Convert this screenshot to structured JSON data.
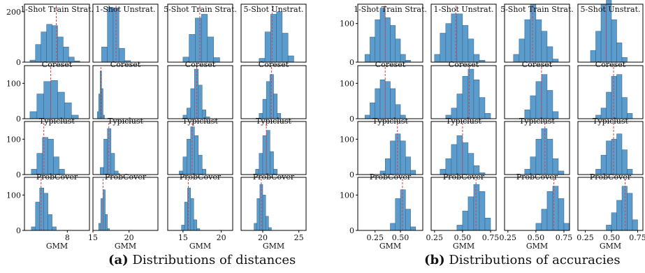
{
  "captions": {
    "a_tag": "(a)",
    "a_text": "Distributions of distances",
    "b_tag": "(b)",
    "b_text": "Distributions of accuracies"
  },
  "colors": {
    "bar_fill": "#5b9ccc",
    "bar_edge": "#2f5f86",
    "mean_line": "#d0454c"
  },
  "chart_data": [
    {
      "type": "bar",
      "panel": "a",
      "column_titles": [
        "1-Shot Train Strat.",
        "1-Shot Unstrat.",
        "5-Shot Train Strat.",
        "5-Shot Unstrat."
      ],
      "row_labels": [
        "Coreset",
        "Typiclust",
        "ProbCover",
        "GMM"
      ],
      "y_tick_labels": [
        [
          "0",
          "200"
        ],
        [
          "0",
          "100"
        ],
        [
          "0",
          "100"
        ],
        [
          "0",
          "100"
        ]
      ],
      "ylim": [
        [
          0,
          230
        ],
        [
          0,
          150
        ],
        [
          0,
          150
        ],
        [
          0,
          150
        ]
      ],
      "x_tick_labels": [
        [
          "8"
        ],
        [
          "15",
          "20"
        ],
        [
          "15",
          "20"
        ],
        [
          "20",
          "25"
        ]
      ],
      "x_tick_values": [
        [
          8
        ],
        [
          15,
          20
        ],
        [
          15,
          20
        ],
        [
          20,
          25
        ]
      ],
      "xlim": [
        [
          4.9,
          9.6
        ],
        [
          15.0,
          24.0
        ],
        [
          13.0,
          21.5
        ],
        [
          17.0,
          26.0
        ]
      ],
      "xlabel": "GMM",
      "histograms": [
        [
          {
            "edges": [
              5.3,
              5.7,
              6.1,
              6.5,
              6.9,
              7.3,
              7.7,
              8.1,
              8.5,
              8.9
            ],
            "counts": [
              8,
              70,
              120,
              150,
              145,
              100,
              60,
              20,
              5
            ],
            "mean": 7.2
          },
          {
            "edges": [
              16.2,
              17.0,
              17.8,
              18.6,
              19.4,
              20.2
            ],
            "counts": [
              60,
              218,
              215,
              55,
              6
            ],
            "mean": 18.2
          },
          {
            "edges": [
              15.0,
              15.8,
              16.6,
              17.4,
              18.2,
              19.0,
              19.8
            ],
            "counts": [
              20,
              110,
              175,
              190,
              100,
              18
            ],
            "mean": 17.2
          },
          {
            "edges": [
              19.5,
              20.3,
              21.1,
              21.9,
              22.7,
              23.5,
              24.3
            ],
            "counts": [
              15,
              120,
              190,
              200,
              115,
              25
            ],
            "mean": 21.3
          }
        ],
        [
          {
            "edges": [
              5.3,
              5.8,
              6.3,
              6.8,
              7.3,
              7.8,
              8.3,
              8.8
            ],
            "counts": [
              20,
              70,
              105,
              108,
              75,
              45,
              10
            ],
            "mean": 6.8
          },
          {
            "edges": [
              15.6,
              15.8,
              16.0,
              16.2,
              16.4,
              16.6
            ],
            "counts": [
              20,
              70,
              135,
              85,
              10
            ],
            "mean": 16.1
          },
          {
            "edges": [
              15.0,
              15.5,
              16.0,
              16.5,
              17.0,
              17.5,
              18.0,
              18.5
            ],
            "counts": [
              10,
              30,
              85,
              140,
              95,
              25,
              5
            ],
            "mean": 16.8
          },
          {
            "edges": [
              19.5,
              20.0,
              20.5,
              21.0,
              21.5,
              22.0,
              22.5
            ],
            "counts": [
              15,
              55,
              105,
              125,
              70,
              15
            ],
            "mean": 21.2
          }
        ],
        [
          {
            "edges": [
              5.4,
              5.8,
              6.2,
              6.6,
              7.0,
              7.4,
              7.8
            ],
            "counts": [
              15,
              60,
              105,
              100,
              50,
              15
            ],
            "mean": 6.3
          },
          {
            "edges": [
              16.0,
              16.5,
              17.0,
              17.5,
              18.0,
              18.5
            ],
            "counts": [
              20,
              100,
              130,
              60,
              10
            ],
            "mean": 17.2
          },
          {
            "edges": [
              14.5,
              15.0,
              15.5,
              16.0,
              16.5,
              17.0,
              17.5,
              18.0
            ],
            "counts": [
              10,
              50,
              100,
              135,
              110,
              55,
              15
            ],
            "mean": 16.2
          },
          {
            "edges": [
              19.0,
              19.5,
              20.0,
              20.5,
              21.0,
              21.5,
              22.0
            ],
            "counts": [
              15,
              60,
              110,
              125,
              65,
              15
            ],
            "mean": 20.5
          }
        ],
        [
          {
            "edges": [
              5.4,
              5.7,
              6.0,
              6.3,
              6.6,
              6.9,
              7.2
            ],
            "counts": [
              10,
              80,
              120,
              105,
              45,
              10
            ],
            "mean": 6.1
          },
          {
            "edges": [
              15.8,
              16.1,
              16.4,
              16.7,
              17.0,
              17.3
            ],
            "counts": [
              20,
              90,
              115,
              45,
              5
            ],
            "mean": 16.4
          },
          {
            "edges": [
              14.8,
              15.2,
              15.6,
              16.0,
              16.4,
              16.8,
              17.2
            ],
            "counts": [
              15,
              80,
              120,
              90,
              30,
              5
            ],
            "mean": 15.7
          },
          {
            "edges": [
              18.8,
              19.2,
              19.6,
              20.0,
              20.4,
              20.8,
              21.2
            ],
            "counts": [
              20,
              90,
              130,
              100,
              40,
              8
            ],
            "mean": 19.8
          }
        ]
      ]
    },
    {
      "type": "bar",
      "panel": "b",
      "column_titles": [
        "1-Shot Train Strat.",
        "1-Shot Unstrat.",
        "5-Shot Train Strat.",
        "5-Shot Unstrat."
      ],
      "row_labels": [
        "Coreset",
        "Typiclust",
        "ProbCover",
        "GMM"
      ],
      "y_tick_labels": [
        [
          "0",
          "100"
        ],
        [
          "0",
          "100"
        ],
        [
          "0",
          "100"
        ],
        [
          "0",
          "100"
        ]
      ],
      "ylim": [
        [
          0,
          150
        ],
        [
          0,
          150
        ],
        [
          0,
          150
        ],
        [
          0,
          150
        ]
      ],
      "x_tick_labels": [
        [
          "0.25",
          "0.50"
        ],
        [
          "0.25",
          "0.50",
          "0.75"
        ],
        [
          "0.25",
          "0.50",
          "0.75"
        ],
        [
          "0.25",
          "0.50",
          "0.75"
        ]
      ],
      "x_tick_values": [
        [
          0.25,
          0.5
        ],
        [
          0.25,
          0.5,
          0.75
        ],
        [
          0.25,
          0.5,
          0.75
        ],
        [
          0.25,
          0.5,
          0.75
        ]
      ],
      "xlim": [
        [
          0.08,
          0.72
        ],
        [
          0.22,
          0.8
        ],
        [
          0.22,
          0.8
        ],
        [
          0.18,
          0.8
        ]
      ],
      "xlabel": "GMM",
      "histograms": [
        [
          {
            "edges": [
              0.15,
              0.2,
              0.25,
              0.3,
              0.35,
              0.4,
              0.45,
              0.5,
              0.55,
              0.6
            ],
            "counts": [
              20,
              65,
              110,
              140,
              115,
              95,
              60,
              20,
              5
            ],
            "mean": 0.35
          },
          {
            "edges": [
              0.25,
              0.3,
              0.35,
              0.4,
              0.45,
              0.5,
              0.55,
              0.6,
              0.65,
              0.7
            ],
            "counts": [
              20,
              75,
              100,
              125,
              125,
              95,
              60,
              20,
              5
            ],
            "mean": 0.44
          },
          {
            "edges": [
              0.3,
              0.35,
              0.4,
              0.45,
              0.5,
              0.55,
              0.6,
              0.65,
              0.7
            ],
            "counts": [
              20,
              60,
              110,
              150,
              110,
              80,
              40,
              8
            ],
            "mean": 0.47
          },
          {
            "edges": [
              0.3,
              0.35,
              0.4,
              0.45,
              0.5,
              0.55,
              0.6,
              0.65
            ],
            "counts": [
              30,
              80,
              150,
              160,
              110,
              50,
              12
            ],
            "mean": 0.45
          }
        ],
        [
          {
            "edges": [
              0.15,
              0.2,
              0.25,
              0.3,
              0.35,
              0.4,
              0.45,
              0.5,
              0.55
            ],
            "counts": [
              10,
              45,
              85,
              110,
              105,
              85,
              40,
              10
            ],
            "mean": 0.35
          },
          {
            "edges": [
              0.35,
              0.4,
              0.45,
              0.5,
              0.55,
              0.6,
              0.65,
              0.7,
              0.75
            ],
            "counts": [
              10,
              30,
              70,
              120,
              140,
              110,
              60,
              15
            ],
            "mean": 0.56
          },
          {
            "edges": [
              0.4,
              0.45,
              0.5,
              0.55,
              0.6,
              0.65,
              0.7
            ],
            "counts": [
              25,
              65,
              105,
              125,
              80,
              20
            ],
            "mean": 0.55
          },
          {
            "edges": [
              0.35,
              0.4,
              0.45,
              0.5,
              0.55,
              0.6,
              0.65,
              0.7
            ],
            "counts": [
              10,
              30,
              75,
              120,
              125,
              60,
              15
            ],
            "mean": 0.52
          }
        ],
        [
          {
            "edges": [
              0.3,
              0.35,
              0.4,
              0.45,
              0.5,
              0.55,
              0.6,
              0.65
            ],
            "counts": [
              10,
              45,
              95,
              115,
              95,
              50,
              12
            ],
            "mean": 0.47
          },
          {
            "edges": [
              0.3,
              0.35,
              0.4,
              0.45,
              0.5,
              0.55,
              0.6,
              0.65,
              0.7
            ],
            "counts": [
              15,
              45,
              85,
              110,
              90,
              60,
              25,
              5
            ],
            "mean": 0.5
          },
          {
            "edges": [
              0.4,
              0.45,
              0.5,
              0.55,
              0.6,
              0.65,
              0.7,
              0.75
            ],
            "counts": [
              15,
              50,
              100,
              130,
              100,
              45,
              10
            ],
            "mean": 0.58
          },
          {
            "edges": [
              0.35,
              0.4,
              0.45,
              0.5,
              0.55,
              0.6,
              0.65,
              0.7
            ],
            "counts": [
              15,
              55,
              95,
              100,
              115,
              70,
              15
            ],
            "mean": 0.52
          }
        ],
        [
          {
            "edges": [
              0.4,
              0.45,
              0.5,
              0.55,
              0.6,
              0.65
            ],
            "counts": [
              20,
              90,
              115,
              60,
              10
            ],
            "mean": 0.52
          },
          {
            "edges": [
              0.45,
              0.5,
              0.55,
              0.6,
              0.65,
              0.7,
              0.75
            ],
            "counts": [
              15,
              55,
              95,
              130,
              110,
              35
            ],
            "mean": 0.62
          },
          {
            "edges": [
              0.5,
              0.55,
              0.6,
              0.65,
              0.7,
              0.75,
              0.8
            ],
            "counts": [
              20,
              60,
              110,
              125,
              90,
              20
            ],
            "mean": 0.66
          },
          {
            "edges": [
              0.45,
              0.5,
              0.55,
              0.6,
              0.65,
              0.7,
              0.75
            ],
            "counts": [
              15,
              50,
              85,
              125,
              105,
              30
            ],
            "mean": 0.63
          }
        ]
      ]
    }
  ]
}
